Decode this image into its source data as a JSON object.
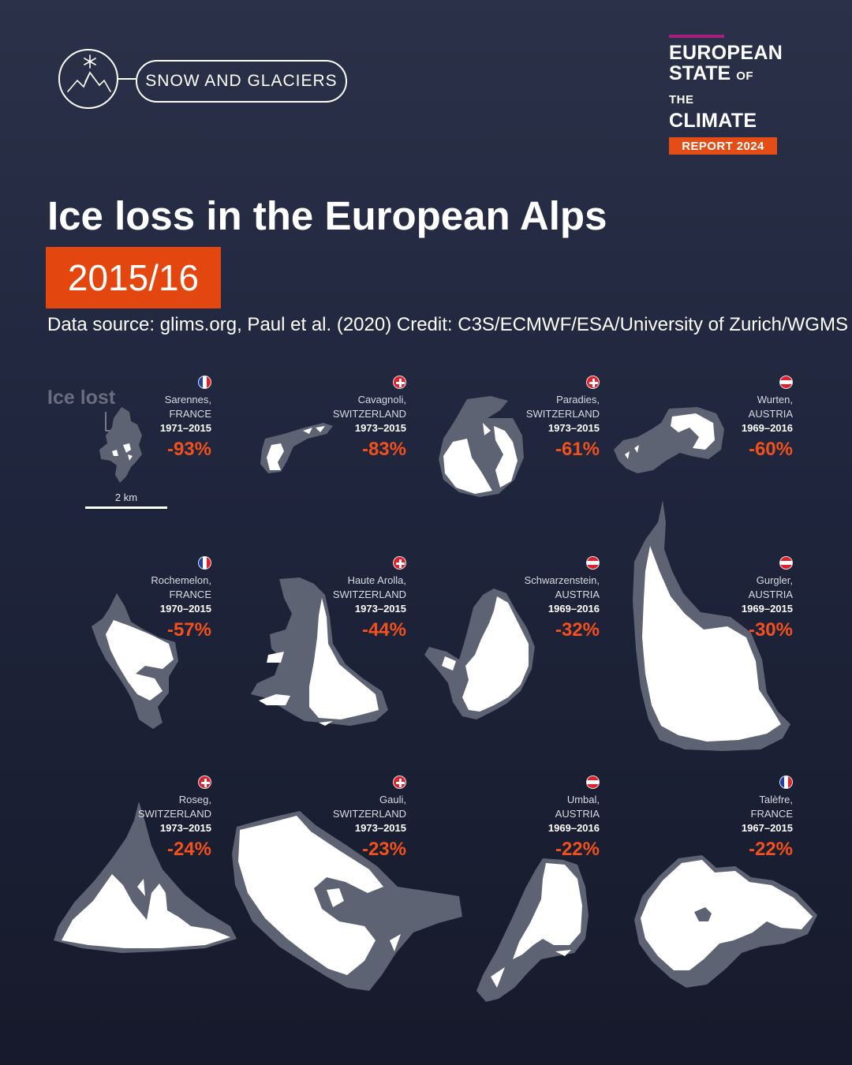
{
  "header": {
    "badge_label": "SNOW AND GLACIERS",
    "badge_icon": "snowflake-mountain-icon",
    "logo": {
      "line1": "EUROPEAN",
      "line2_big": "STATE",
      "line2_small": "OF THE",
      "line3": "CLIMATE",
      "report": "REPORT 2024",
      "colors": {
        "bar": "#a51f7d",
        "report_bg": "#e44d16"
      }
    }
  },
  "title": "Ice loss in the European Alps",
  "period": "2015/16",
  "source": "Data source: glims.org, Paul et al. (2020) Credit: C3S/ECMWF/ESA/University of Zurich/WGMS",
  "legend": {
    "ice_lost": "Ice lost",
    "scale": "2 km"
  },
  "colors": {
    "ice_lost": "#5e6374",
    "ice_remaining": "#ffffff",
    "percent": "#f2501d",
    "accent": "#e3470f"
  },
  "glaciers": [
    {
      "name": "Sarennes,",
      "country": "FRANCE",
      "years": "1971–2015",
      "change": "-93%",
      "flag": "fr"
    },
    {
      "name": "Cavagnoli,",
      "country": "SWITZERLAND",
      "years": "1973–2015",
      "change": "-83%",
      "flag": "ch"
    },
    {
      "name": "Paradies,",
      "country": "SWITZERLAND",
      "years": "1973–2015",
      "change": "-61%",
      "flag": "ch"
    },
    {
      "name": "Wurten,",
      "country": "AUSTRIA",
      "years": "1969–2016",
      "change": "-60%",
      "flag": "at"
    },
    {
      "name": "Rochemelon,",
      "country": "FRANCE",
      "years": "1970–2015",
      "change": "-57%",
      "flag": "fr"
    },
    {
      "name": "Haute Arolla,",
      "country": "SWITZERLAND",
      "years": "1973–2015",
      "change": "-44%",
      "flag": "ch"
    },
    {
      "name": "Schwarzenstein,",
      "country": "AUSTRIA",
      "years": "1969–2016",
      "change": "-32%",
      "flag": "at"
    },
    {
      "name": "Gurgler,",
      "country": "AUSTRIA",
      "years": "1969–2015",
      "change": "-30%",
      "flag": "at"
    },
    {
      "name": "Roseg,",
      "country": "SWITZERLAND",
      "years": "1973–2015",
      "change": "-24%",
      "flag": "ch"
    },
    {
      "name": "Gauli,",
      "country": "SWITZERLAND",
      "years": "1973–2015",
      "change": "-23%",
      "flag": "ch"
    },
    {
      "name": "Umbal,",
      "country": "AUSTRIA",
      "years": "1969–2016",
      "change": "-22%",
      "flag": "at"
    },
    {
      "name": "Talèfre,",
      "country": "FRANCE",
      "years": "1967–2015",
      "change": "-22%",
      "flag": "fr"
    }
  ]
}
